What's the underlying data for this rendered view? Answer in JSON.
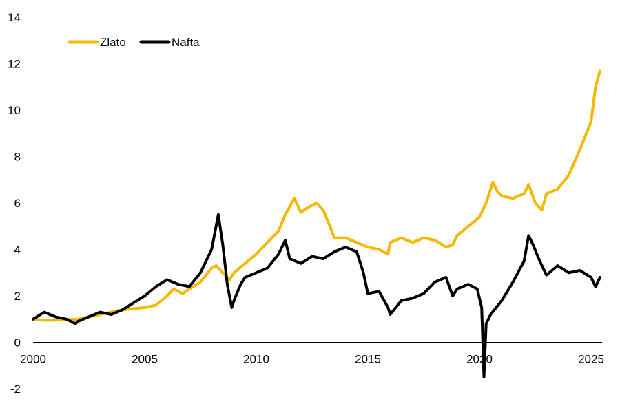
{
  "chart_data": {
    "type": "line",
    "title": "",
    "xlabel": "",
    "ylabel": "",
    "x_ticks": [
      "2000",
      "2005",
      "2010",
      "2015",
      "2020",
      "2025"
    ],
    "y_ticks": [
      "14",
      "12",
      "10",
      "8",
      "6",
      "4",
      "2",
      "0",
      "-2"
    ],
    "xlim": [
      2000,
      2025.5
    ],
    "ylim": [
      -2,
      14
    ],
    "grid": false,
    "legend_position": "top-left",
    "series": [
      {
        "name": "Zlato",
        "color": "#F5B800",
        "x": [
          2000,
          2000.5,
          2001,
          2001.5,
          2002,
          2002.5,
          2003,
          2003.5,
          2004,
          2004.5,
          2005,
          2005.5,
          2006,
          2006.3,
          2006.7,
          2007,
          2007.5,
          2008,
          2008.2,
          2008.5,
          2008.8,
          2009,
          2009.5,
          2010,
          2010.5,
          2011,
          2011.3,
          2011.7,
          2012,
          2012.3,
          2012.7,
          2013,
          2013.3,
          2013.5,
          2014,
          2014.5,
          2015,
          2015.5,
          2015.9,
          2016,
          2016.5,
          2017,
          2017.5,
          2018,
          2018.5,
          2018.8,
          2019,
          2019.5,
          2020,
          2020.3,
          2020.6,
          2020.8,
          2021,
          2021.5,
          2022,
          2022.2,
          2022.5,
          2022.8,
          2023,
          2023.5,
          2024,
          2024.5,
          2025,
          2025.2,
          2025.4
        ],
        "y": [
          1.0,
          0.95,
          0.95,
          0.98,
          1.0,
          1.1,
          1.2,
          1.3,
          1.4,
          1.45,
          1.5,
          1.6,
          2.0,
          2.3,
          2.1,
          2.3,
          2.6,
          3.2,
          3.3,
          3.0,
          2.7,
          3.0,
          3.4,
          3.8,
          4.3,
          4.8,
          5.5,
          6.2,
          5.6,
          5.8,
          6.0,
          5.7,
          5.0,
          4.5,
          4.5,
          4.3,
          4.1,
          4.0,
          3.8,
          4.3,
          4.5,
          4.3,
          4.5,
          4.4,
          4.1,
          4.2,
          4.6,
          5.0,
          5.4,
          6.0,
          6.9,
          6.5,
          6.3,
          6.2,
          6.4,
          6.8,
          6.0,
          5.7,
          6.4,
          6.6,
          7.2,
          8.3,
          9.5,
          11.0,
          11.7
        ]
      },
      {
        "name": "Nafta",
        "color": "#000000",
        "x": [
          2000,
          2000.5,
          2001,
          2001.5,
          2001.9,
          2002,
          2002.5,
          2003,
          2003.5,
          2004,
          2004.5,
          2005,
          2005.5,
          2006,
          2006.5,
          2007,
          2007.5,
          2008,
          2008.3,
          2008.5,
          2008.7,
          2008.9,
          2009,
          2009.3,
          2009.5,
          2010,
          2010.5,
          2011,
          2011.3,
          2011.5,
          2012,
          2012.5,
          2013,
          2013.5,
          2014,
          2014.5,
          2014.8,
          2015,
          2015.5,
          2015.9,
          2016,
          2016.5,
          2017,
          2017.5,
          2018,
          2018.5,
          2018.8,
          2019,
          2019.5,
          2019.9,
          2020.1,
          2020.2,
          2020.3,
          2020.5,
          2021,
          2021.5,
          2022,
          2022.2,
          2022.4,
          2022.7,
          2023,
          2023.5,
          2024,
          2024.5,
          2025,
          2025.2,
          2025.4
        ],
        "y": [
          1.0,
          1.3,
          1.1,
          1.0,
          0.8,
          0.9,
          1.1,
          1.3,
          1.2,
          1.4,
          1.7,
          2.0,
          2.4,
          2.7,
          2.5,
          2.4,
          3.0,
          4.0,
          5.5,
          4.2,
          2.5,
          1.5,
          1.8,
          2.5,
          2.8,
          3.0,
          3.2,
          3.8,
          4.4,
          3.6,
          3.4,
          3.7,
          3.6,
          3.9,
          4.1,
          3.9,
          3.0,
          2.1,
          2.2,
          1.5,
          1.2,
          1.8,
          1.9,
          2.1,
          2.6,
          2.8,
          2.0,
          2.3,
          2.5,
          2.3,
          1.5,
          -1.5,
          0.8,
          1.2,
          1.8,
          2.6,
          3.5,
          4.6,
          4.2,
          3.5,
          2.9,
          3.3,
          3.0,
          3.1,
          2.8,
          2.4,
          2.8
        ]
      }
    ]
  }
}
